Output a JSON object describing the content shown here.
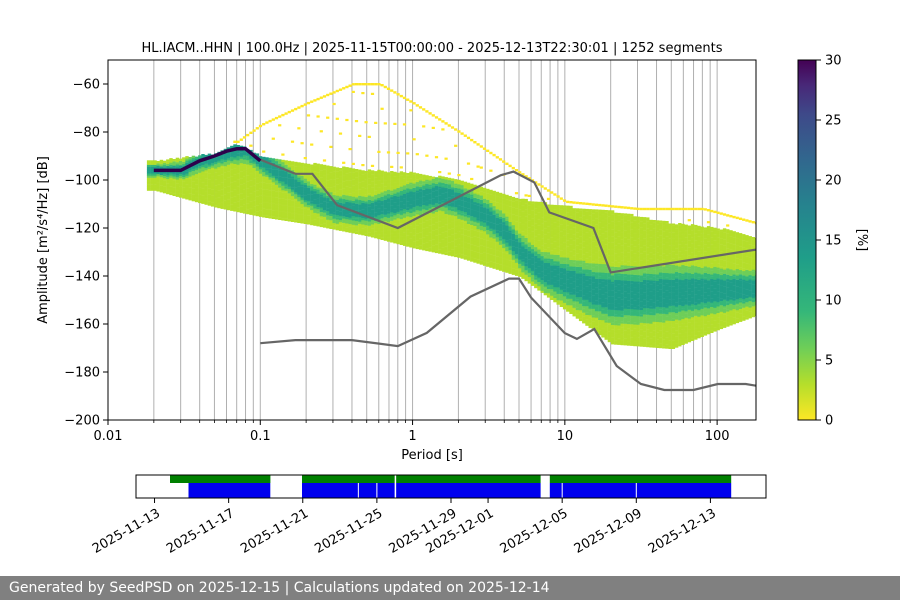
{
  "chart_data": [
    {
      "type": "heatmap",
      "title": "HL.IACM..HHN | 100.0Hz | 2025-11-15T00:00:00 - 2025-12-13T22:30:01 | 1252 segments",
      "xlabel": "Period [s]",
      "ylabel": "Amplitude [m²/s⁴/Hz] [dB]",
      "xscale": "log",
      "xlim": [
        0.01,
        180
      ],
      "ylim": [
        -200,
        -50
      ],
      "xticks": [
        0.01,
        0.1,
        1,
        10,
        100
      ],
      "xtick_labels": [
        "0.01",
        "0.1",
        "1",
        "10",
        "100"
      ],
      "yticks": [
        -200,
        -180,
        -160,
        -140,
        -120,
        -100,
        -80,
        -60
      ],
      "ytick_labels": [
        "−200",
        "−180",
        "−160",
        "−140",
        "−120",
        "−100",
        "−80",
        "−60"
      ],
      "grid": "vertical, at log-period minor ticks",
      "colorbar": {
        "label": "[%]",
        "range": [
          0,
          30
        ],
        "ticks": [
          0,
          5,
          10,
          15,
          20,
          25,
          30
        ],
        "tick_labels": [
          "0",
          "5",
          "10",
          "15",
          "20",
          "25",
          "30"
        ],
        "colormap": "viridis_r"
      },
      "mode_curve": {
        "name": "most probable PSD",
        "x": [
          0.02,
          0.025,
          0.03,
          0.04,
          0.05,
          0.06,
          0.07,
          0.08,
          0.1,
          0.15,
          0.2,
          0.3,
          0.5,
          1,
          1.5,
          2,
          3,
          4,
          5,
          7,
          10,
          15,
          20,
          30,
          50,
          100,
          180
        ],
        "y": [
          -96,
          -96,
          -96,
          -92,
          -90,
          -88,
          -87,
          -87,
          -92,
          -100,
          -106,
          -112,
          -113,
          -108,
          -106,
          -109,
          -115,
          -122,
          -130,
          -138,
          -142,
          -146,
          -148,
          -148,
          -147,
          -146,
          -145
        ]
      },
      "percentile_cloud": {
        "upper_y_at_x": [
          [
            0.02,
            -92
          ],
          [
            0.05,
            -89
          ],
          [
            0.07,
            -85
          ],
          [
            0.1,
            -90
          ],
          [
            0.2,
            -93
          ],
          [
            0.5,
            -96
          ],
          [
            1,
            -97
          ],
          [
            2,
            -100
          ],
          [
            5,
            -108
          ],
          [
            10,
            -111
          ],
          [
            20,
            -113
          ],
          [
            50,
            -118
          ],
          [
            100,
            -120
          ],
          [
            180,
            -124
          ]
        ],
        "lower_y_at_x": [
          [
            0.02,
            -104
          ],
          [
            0.05,
            -111
          ],
          [
            0.1,
            -115
          ],
          [
            0.2,
            -118
          ],
          [
            0.5,
            -123
          ],
          [
            1,
            -128
          ],
          [
            2,
            -132
          ],
          [
            5,
            -140
          ],
          [
            10,
            -154
          ],
          [
            20,
            -168
          ],
          [
            50,
            -170
          ],
          [
            100,
            -162
          ],
          [
            180,
            -156
          ]
        ],
        "sparse_upper_y_at_x": [
          [
            0.07,
            -84
          ],
          [
            0.1,
            -77
          ],
          [
            0.2,
            -68
          ],
          [
            0.4,
            -60
          ],
          [
            0.6,
            -60
          ],
          [
            1,
            -68
          ],
          [
            2,
            -80
          ],
          [
            5,
            -97
          ],
          [
            10,
            -109
          ],
          [
            30,
            -112
          ],
          [
            80,
            -112
          ],
          [
            180,
            -118
          ]
        ]
      },
      "reference_curves": [
        {
          "name": "NHNM",
          "x": [
            0.1,
            0.17,
            0.22,
            0.32,
            0.8,
            3.8,
            4.6,
            6.3,
            7.9,
            15.4,
            20,
            180
          ],
          "y": [
            -91.5,
            -97.4,
            -97.4,
            -110.5,
            -120,
            -98,
            -96.5,
            -101,
            -113.5,
            -120,
            -138.5,
            -129
          ]
        },
        {
          "name": "NLNM",
          "x": [
            0.1,
            0.17,
            0.4,
            0.8,
            1.24,
            2.4,
            4.3,
            5,
            6,
            10,
            12,
            15.6,
            21.9,
            31.6,
            45,
            70,
            101,
            154,
            180
          ],
          "y": [
            -168,
            -166.7,
            -166.7,
            -169.2,
            -163.7,
            -148.6,
            -141.1,
            -141.1,
            -149,
            -163.8,
            -166.2,
            -162.1,
            -177.5,
            -185,
            -187.5,
            -187.5,
            -185,
            -185,
            -185.7
          ]
        }
      ],
      "colors": {
        "mode": "#2d004b",
        "reference": "#666666",
        "grid": "#b0b0b0"
      }
    },
    {
      "type": "timeline",
      "name": "data availability",
      "xlim": [
        "2025-11-12",
        "2025-12-16"
      ],
      "tick_labels": [
        "2025-11-13",
        "2025-11-17",
        "2025-11-21",
        "2025-11-25",
        "2025-11-29",
        "2025-12-01",
        "2025-12-05",
        "2025-12-09",
        "2025-12-13"
      ],
      "tick_dates": [
        "2025-11-13",
        "2025-11-17",
        "2025-11-21",
        "2025-11-25",
        "2025-11-29",
        "2025-12-01",
        "2025-12-05",
        "2025-12-09",
        "2025-12-13"
      ],
      "green_segments": [
        [
          "2025-11-13T20:00",
          "2025-11-19T06:00"
        ],
        [
          "2025-11-20T23:00",
          "2025-12-03T20:00"
        ],
        [
          "2025-12-04T08:00",
          "2025-12-14T03:00"
        ]
      ],
      "blue_segments": [
        [
          "2025-11-14T20:00",
          "2025-11-19T06:00"
        ],
        [
          "2025-11-20T23:00",
          "2025-12-03T20:00"
        ],
        [
          "2025-12-04T08:00",
          "2025-12-14T03:00"
        ]
      ],
      "blue_gaps": [
        "2025-11-24T00:00",
        "2025-11-25T00:00",
        "2025-11-26T00:00",
        "2025-12-05T00:00",
        "2025-12-09T00:00"
      ],
      "white_gaps": [
        "2025-11-26T00:00"
      ],
      "colors": {
        "green": "#008000",
        "blue": "#0000ee"
      }
    }
  ],
  "footer": {
    "text": "Generated by SeedPSD on 2025-12-15 | Calculations updated on 2025-12-14"
  }
}
